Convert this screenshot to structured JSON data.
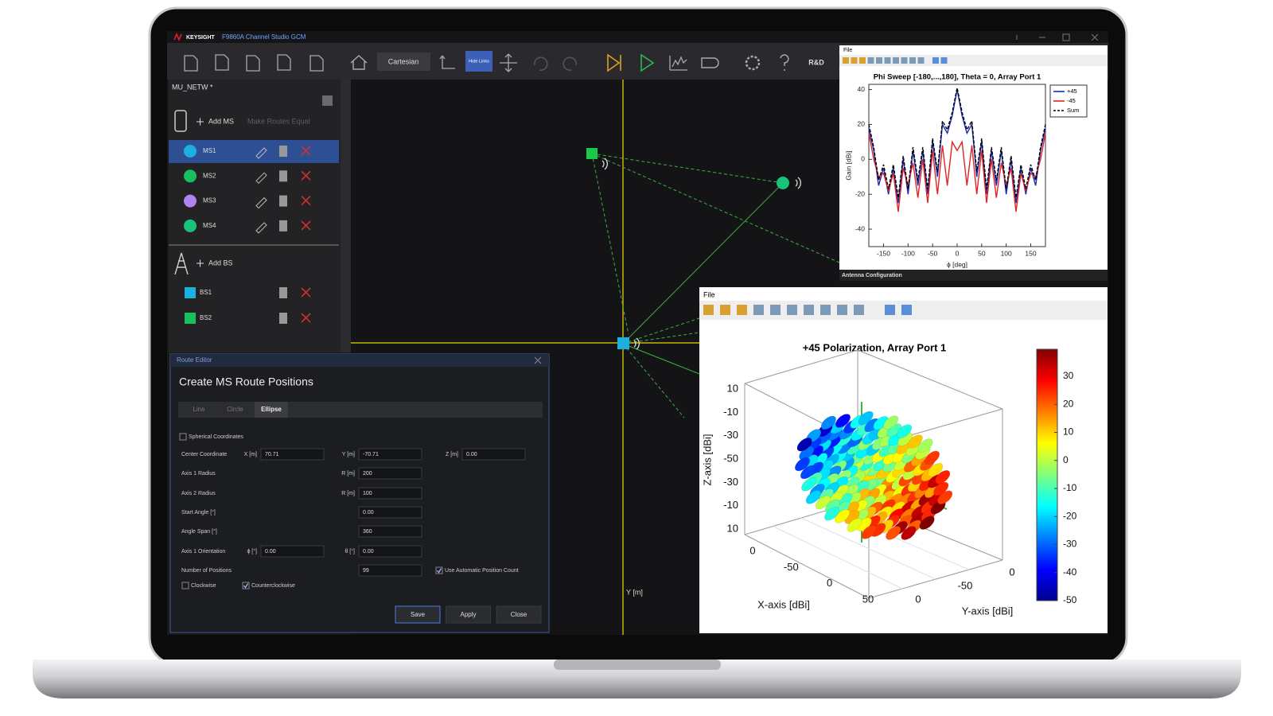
{
  "app": {
    "brand": "KEYSIGHT",
    "title": "F9860A Channel Studio GCM"
  },
  "toolbar": {
    "view": "Cartesian",
    "links": "Hide Links",
    "mode": "R&D"
  },
  "network": {
    "name": "MU_NETW *",
    "add_ms": "Add MS",
    "equalize": "Make Routes Equal",
    "mobile_stations": [
      "MS1",
      "MS2",
      "MS3",
      "MS4"
    ],
    "selected_ms": 0,
    "add_bs": "Add BS",
    "base_stations": [
      "BS1",
      "BS2"
    ]
  },
  "canvas": {
    "axis_label": "Y [m]"
  },
  "route_editor": {
    "window_title": "Route Editor",
    "heading": "Create MS Route Positions",
    "tabs": [
      "Line",
      "Circle",
      "Ellipse"
    ],
    "active_tab": 2,
    "spherical": {
      "label": "Spherical Coordinates",
      "checked": false
    },
    "center": {
      "label": "Center Coordinate",
      "x_unit": "X [m]",
      "x": "70.71",
      "y_unit": "Y [m]",
      "y": "-70.71",
      "z_unit": "Z [m]",
      "z": "0.00"
    },
    "axis1_radius": {
      "label": "Axis 1 Radius",
      "unit": "R [m]",
      "value": "200"
    },
    "axis2_radius": {
      "label": "Axis 2 Radius",
      "unit": "R [m]",
      "value": "100"
    },
    "start_angle": {
      "label": "Start Angle [°]",
      "value": "0.00"
    },
    "angle_span": {
      "label": "Angle Span [°]",
      "value": "360"
    },
    "orientation": {
      "label": "Axis 1 Orientation",
      "phi_unit": "ϕ [°]",
      "phi": "0.00",
      "theta_unit": "θ [°]",
      "theta": "0.00"
    },
    "positions": {
      "label": "Number of Positions",
      "value": "99",
      "auto": {
        "label": "Use Automatic Position Count",
        "checked": true
      }
    },
    "clockwise": {
      "label": "Clockwise",
      "checked": false
    },
    "counterclockwise": {
      "label": "Counterclockwise",
      "checked": true
    },
    "buttons": [
      "Save",
      "Apply",
      "Close"
    ]
  },
  "phi_window": {
    "menu": "File"
  },
  "chart_data": {
    "type": "line",
    "title": "Phi Sweep [-180,...,180], Theta = 0, Array Port 1",
    "x_label": "ϕ [deg]",
    "y_label": "Gain [dBi]",
    "x": [
      -180,
      -170,
      -160,
      -150,
      -140,
      -130,
      -120,
      -110,
      -100,
      -90,
      -80,
      -70,
      -60,
      -50,
      -40,
      -30,
      -20,
      -10,
      0,
      10,
      20,
      30,
      40,
      50,
      60,
      70,
      80,
      90,
      100,
      110,
      120,
      130,
      140,
      150,
      160,
      170,
      180
    ],
    "xlim": [
      -180,
      180
    ],
    "xticks": [
      -150,
      -100,
      -50,
      0,
      50,
      100,
      150
    ],
    "ylim": [
      -50,
      43
    ],
    "yticks": [
      -40,
      -20,
      0,
      20,
      40
    ],
    "grid": false,
    "legend": "northeastoutside",
    "series": [
      {
        "name": "+45",
        "color": "#1a2bb8",
        "dash": "solid",
        "values": [
          18,
          5,
          -15,
          -5,
          -20,
          -5,
          -25,
          0,
          -20,
          5,
          -15,
          5,
          -20,
          10,
          -10,
          20,
          15,
          25,
          40,
          25,
          15,
          20,
          -10,
          10,
          -20,
          5,
          -15,
          5,
          -20,
          0,
          -25,
          -5,
          -20,
          -5,
          -15,
          5,
          18
        ]
      },
      {
        "name": "-45",
        "color": "#e02424",
        "dash": "solid",
        "values": [
          15,
          0,
          -10,
          -8,
          -18,
          -8,
          -30,
          -5,
          -15,
          -2,
          -22,
          0,
          -25,
          5,
          -20,
          8,
          -15,
          10,
          5,
          10,
          -15,
          8,
          -20,
          5,
          -25,
          0,
          -22,
          -2,
          -15,
          -5,
          -30,
          -8,
          -18,
          -8,
          -10,
          0,
          15
        ]
      },
      {
        "name": "Sum",
        "color": "#000000",
        "dash": "dashed",
        "values": [
          20,
          7,
          -12,
          -3,
          -17,
          -3,
          -22,
          2,
          -17,
          7,
          -12,
          7,
          -17,
          12,
          -7,
          22,
          17,
          27,
          41,
          27,
          17,
          22,
          -7,
          12,
          -17,
          7,
          -12,
          7,
          -17,
          2,
          -22,
          -3,
          -17,
          -3,
          -12,
          7,
          20
        ]
      }
    ]
  },
  "antenna_panel": "Antenna Configuration",
  "plot3d": {
    "menu": "File",
    "title": "+45 Polarization, Array Port 1",
    "z_tick_labels": [
      "10",
      "-10",
      "-30",
      "-50",
      "-30",
      "-10",
      "10"
    ],
    "z_label": "Z-axis [dBi]",
    "x_tick_labels": [
      "0",
      "-50",
      "0",
      "50"
    ],
    "x_label": "X-axis [dBi]",
    "y_tick_labels": [
      "0",
      "-50",
      "0"
    ],
    "y_label": "Y-axis [dBi]",
    "colorbar_ticks": [
      "30",
      "20",
      "10",
      "0",
      "-10",
      "-20",
      "-30",
      "-40",
      "-50"
    ]
  }
}
